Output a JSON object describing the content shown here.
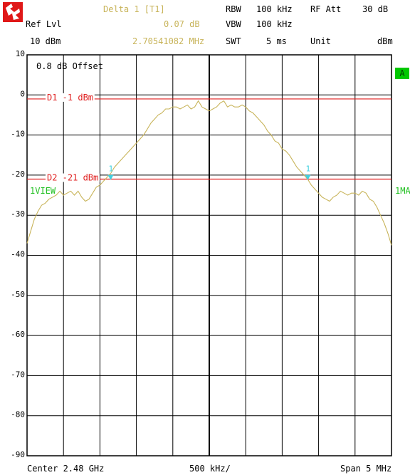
{
  "header": {
    "delta_label": "Delta 1 [T1]",
    "delta_value": "0.07 dB",
    "delta_freq": "2.70541082 MHz",
    "ref_lvl_label": "Ref Lvl",
    "ref_lvl_value": "10 dBm",
    "rbw_label": "RBW",
    "rbw_value": "100 kHz",
    "vbw_label": "VBW",
    "vbw_value": "100 kHz",
    "swt_label": "SWT",
    "swt_value": "5 ms",
    "rfatt_label": "RF Att",
    "rfatt_value": "30 dB",
    "unit_label": "Unit",
    "unit_value": "dBm"
  },
  "plot": {
    "offset_text": "0.8 dB Offset",
    "d1_label": "D1 -1 dBm",
    "d2_label": "D2 -21 dBm",
    "view_label": "1VIEW",
    "trace_label": "1MA",
    "badge": "A",
    "marker_label": "1"
  },
  "footer": {
    "center": "Center 2.48 GHz",
    "div": "500 kHz/",
    "span": "Span 5 MHz"
  },
  "colors": {
    "trace": "#c8b45a",
    "display_line": "#e02020",
    "marker": "#40d0e0",
    "badge": "#00c800"
  },
  "chart_data": {
    "type": "line",
    "ylim": [
      -90,
      10
    ],
    "yticks": [
      "10",
      "0",
      "-10",
      "-20",
      "-30",
      "-40",
      "-50",
      "-60",
      "-70",
      "-80",
      "-90"
    ],
    "xlim_mhz": [
      -2.5,
      2.5
    ],
    "display_lines": [
      {
        "name": "D1",
        "value": -1
      },
      {
        "name": "D2",
        "value": -21
      }
    ],
    "markers": [
      {
        "x": -1.353,
        "y": -20.5
      },
      {
        "x": 1.352,
        "y": -20.5
      }
    ],
    "series": [
      {
        "x": [
          -2.5,
          -2.45,
          -2.4,
          -2.35,
          -2.3,
          -2.25,
          -2.2,
          -2.15,
          -2.1,
          -2.05,
          -2.0,
          -1.95,
          -1.9,
          -1.85,
          -1.8,
          -1.75,
          -1.7,
          -1.65,
          -1.6,
          -1.55,
          -1.5,
          -1.45,
          -1.4,
          -1.35,
          -1.3,
          -1.25,
          -1.2,
          -1.15,
          -1.1,
          -1.05,
          -1.0,
          -0.95,
          -0.9,
          -0.85,
          -0.8,
          -0.75,
          -0.7,
          -0.65,
          -0.6,
          -0.55,
          -0.5,
          -0.45,
          -0.4,
          -0.35,
          -0.3,
          -0.25,
          -0.2,
          -0.15,
          -0.1,
          -0.05,
          0.0,
          0.05,
          0.1,
          0.15,
          0.2,
          0.25,
          0.3,
          0.35,
          0.4,
          0.45,
          0.5,
          0.55,
          0.6,
          0.65,
          0.7,
          0.75,
          0.8,
          0.85,
          0.9,
          0.95,
          1.0,
          1.05,
          1.1,
          1.15,
          1.2,
          1.25,
          1.3,
          1.35,
          1.4,
          1.45,
          1.5,
          1.55,
          1.6,
          1.65,
          1.7,
          1.75,
          1.8,
          1.85,
          1.9,
          1.95,
          2.0,
          2.05,
          2.1,
          2.15,
          2.2,
          2.25,
          2.3,
          2.35,
          2.4,
          2.45,
          2.5
        ],
        "values": [
          -37,
          -34,
          -31,
          -29,
          -27.5,
          -27,
          -26,
          -25.5,
          -25,
          -24,
          -25,
          -24.5,
          -24,
          -25,
          -24,
          -25.5,
          -26.5,
          -26,
          -24.5,
          -23,
          -22.5,
          -21.5,
          -20.5,
          -19.5,
          -18,
          -17,
          -16,
          -15,
          -14,
          -13,
          -12,
          -11,
          -10,
          -8.5,
          -7,
          -6,
          -5,
          -4.5,
          -3.5,
          -3.5,
          -3,
          -3,
          -3.5,
          -3,
          -2.5,
          -3.5,
          -3,
          -1.5,
          -3,
          -3.5,
          -4,
          -3.5,
          -3,
          -2,
          -1.5,
          -3,
          -2.5,
          -3,
          -3,
          -2.5,
          -3,
          -4,
          -4.5,
          -5.5,
          -6.5,
          -7.5,
          -9,
          -10,
          -11.5,
          -12,
          -13.5,
          -14,
          -15,
          -16.5,
          -18,
          -19,
          -20,
          -21,
          -22.5,
          -23.5,
          -24.5,
          -25.5,
          -26,
          -26.5,
          -25.5,
          -25,
          -24,
          -24.5,
          -25,
          -24.5,
          -24.5,
          -25,
          -24,
          -24.5,
          -26,
          -26.5,
          -28,
          -30,
          -32,
          -34.5,
          -37.5
        ]
      }
    ]
  }
}
